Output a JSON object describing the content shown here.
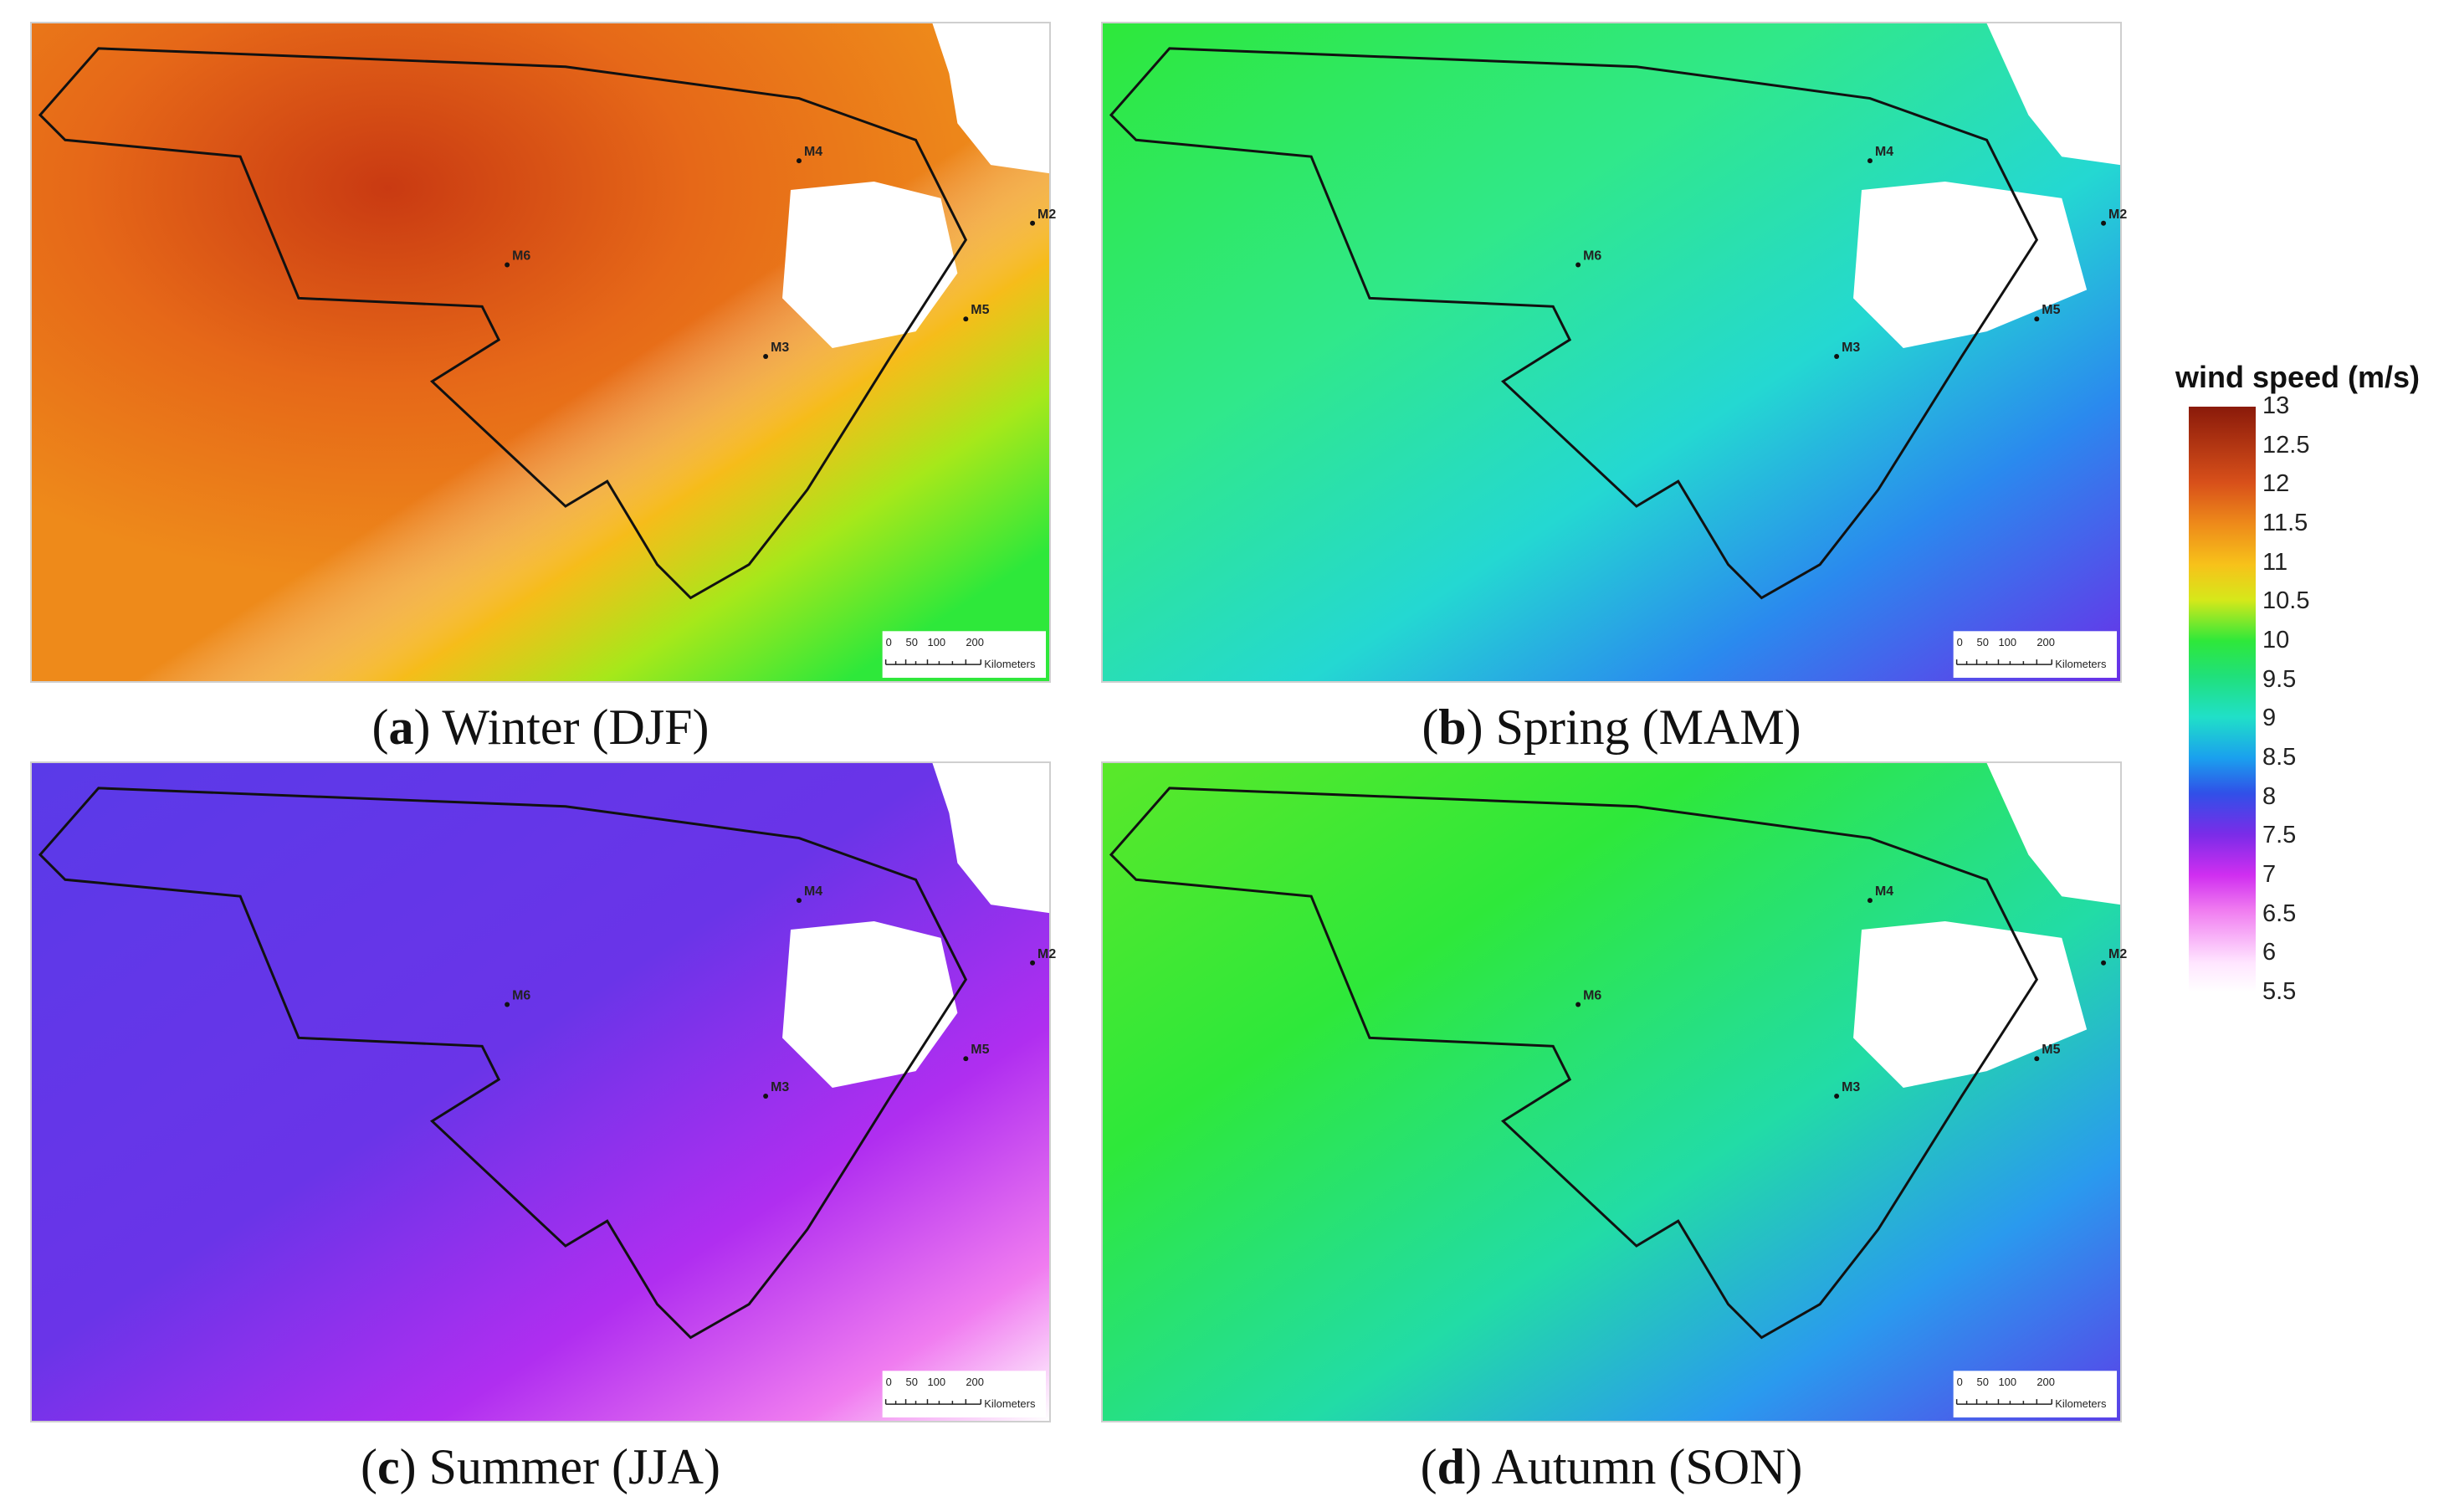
{
  "panels": [
    {
      "letter": "a",
      "label": "Winter (DJF)"
    },
    {
      "letter": "b",
      "label": "Spring (MAM)"
    },
    {
      "letter": "c",
      "label": "Summer (JJA)"
    },
    {
      "letter": "d",
      "label": "Autumn (SON)"
    }
  ],
  "stations": [
    "M2",
    "M3",
    "M4",
    "M5",
    "M6"
  ],
  "scalebar": {
    "ticks": [
      "0",
      "50",
      "100",
      "200"
    ],
    "unit": "Kilometers"
  },
  "legend": {
    "title": "wind speed (m/s)",
    "ticks": [
      "13",
      "12.5",
      "12",
      "11.5",
      "11",
      "10.5",
      "10",
      "9.5",
      "9",
      "8.5",
      "8",
      "7.5",
      "7",
      "6.5",
      "6",
      "5.5"
    ]
  },
  "colors": {
    "winter_main": "#e86a1a",
    "spring_main": "#2ee84a",
    "summer_main": "#5a3ae8",
    "autumn_main": "#2ee83a"
  }
}
